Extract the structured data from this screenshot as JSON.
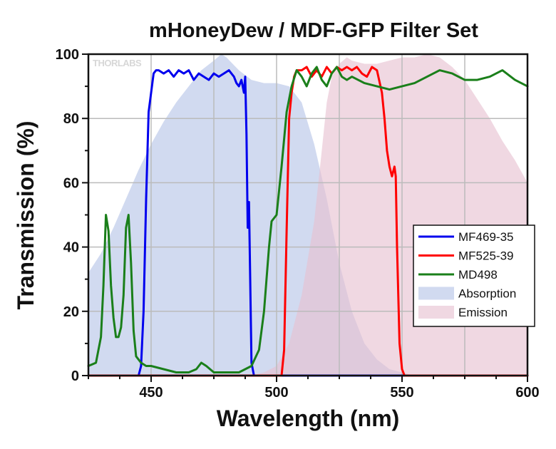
{
  "chart_data": {
    "type": "line",
    "title": "mHoneyDew / MDF-GFP Filter Set",
    "xlabel": "Wavelength (nm)",
    "ylabel": "Transmission (%)",
    "xlim": [
      425,
      600
    ],
    "ylim": [
      0,
      100
    ],
    "xticks": [
      450,
      500,
      550,
      600
    ],
    "yticks": [
      0,
      20,
      40,
      60,
      80,
      100
    ],
    "grid": true,
    "legend_position": "lower-right",
    "watermark": "THORLABS",
    "series": [
      {
        "name": "MF469-35",
        "color": "#0000ee",
        "kind": "line",
        "x": [
          425,
          445,
          446,
          447,
          448,
          449,
          450,
          451,
          452,
          453,
          455,
          457,
          459,
          461,
          463,
          465,
          467,
          469,
          471,
          473,
          475,
          477,
          479,
          481,
          483,
          484,
          485,
          486,
          487,
          487.5,
          488,
          488.5,
          489,
          489.5,
          490,
          491,
          600
        ],
        "y": [
          0,
          0,
          3,
          20,
          55,
          82,
          88,
          94,
          95,
          95,
          94,
          95,
          93,
          95,
          94,
          95,
          92,
          94,
          93,
          92,
          94,
          93,
          94,
          95,
          93,
          91,
          90,
          92,
          88,
          93,
          75,
          46,
          54,
          30,
          4,
          0,
          0
        ]
      },
      {
        "name": "MF525-39",
        "color": "#ff0000",
        "kind": "line",
        "x": [
          425,
          502,
          503,
          504,
          505,
          506,
          507,
          508,
          510,
          512,
          514,
          516,
          518,
          520,
          522,
          524,
          526,
          528,
          530,
          532,
          534,
          536,
          538,
          540,
          542,
          543,
          544,
          545,
          546,
          547,
          547.5,
          548,
          549,
          550,
          551,
          552,
          600
        ],
        "y": [
          0,
          0,
          8,
          45,
          80,
          88,
          93,
          95,
          95,
          96,
          93,
          95,
          93,
          96,
          94,
          96,
          95,
          96,
          95,
          96,
          94,
          93,
          96,
          95,
          88,
          80,
          70,
          65,
          62,
          65,
          62,
          40,
          10,
          2,
          0,
          0,
          0
        ]
      },
      {
        "name": "MD498",
        "color": "#1a7f1a",
        "kind": "line",
        "x": [
          425,
          428,
          430,
          431,
          432,
          433,
          434,
          435,
          436,
          437,
          438,
          439,
          440,
          441,
          442,
          443,
          444,
          446,
          448,
          450,
          455,
          460,
          465,
          468,
          470,
          472,
          475,
          480,
          485,
          490,
          493,
          495,
          497,
          498,
          499,
          500,
          502,
          504,
          506,
          508,
          510,
          512,
          514,
          516,
          518,
          520,
          522,
          524,
          526,
          528,
          530,
          535,
          540,
          545,
          550,
          555,
          560,
          565,
          570,
          575,
          580,
          585,
          590,
          595,
          600
        ],
        "y": [
          3,
          4,
          12,
          28,
          50,
          45,
          28,
          18,
          12,
          12,
          15,
          25,
          46,
          50,
          35,
          14,
          6,
          4,
          3,
          3,
          2,
          1,
          1,
          2,
          4,
          3,
          1,
          1,
          1,
          3,
          8,
          20,
          40,
          48,
          49,
          50,
          65,
          82,
          90,
          95,
          93,
          90,
          94,
          96,
          92,
          90,
          94,
          96,
          93,
          92,
          93,
          91,
          90,
          89,
          90,
          91,
          93,
          95,
          94,
          92,
          92,
          93,
          95,
          92,
          90
        ]
      },
      {
        "name": "Absorption",
        "color": "#b4c3e6",
        "kind": "area",
        "x": [
          425,
          430,
          435,
          440,
          445,
          450,
          455,
          460,
          465,
          470,
          475,
          478,
          480,
          485,
          490,
          495,
          500,
          505,
          510,
          515,
          520,
          525,
          530,
          535,
          540,
          545,
          550,
          555,
          560
        ],
        "y": [
          32,
          38,
          46,
          55,
          64,
          72,
          79,
          85,
          90,
          95,
          98,
          100,
          99,
          95,
          92,
          91,
          91,
          90,
          85,
          72,
          55,
          35,
          20,
          10,
          5,
          2,
          1,
          0,
          0
        ]
      },
      {
        "name": "Emission",
        "color": "#e6c0d1",
        "kind": "area",
        "x": [
          490,
          495,
          500,
          505,
          510,
          515,
          518,
          520,
          522,
          525,
          528,
          530,
          535,
          540,
          545,
          550,
          555,
          560,
          565,
          570,
          575,
          580,
          585,
          590,
          595,
          600
        ],
        "y": [
          0,
          1,
          3,
          10,
          25,
          48,
          70,
          85,
          93,
          97,
          99,
          98,
          97,
          97,
          98,
          99,
          99,
          100,
          99,
          96,
          92,
          86,
          80,
          73,
          67,
          60
        ]
      }
    ]
  }
}
